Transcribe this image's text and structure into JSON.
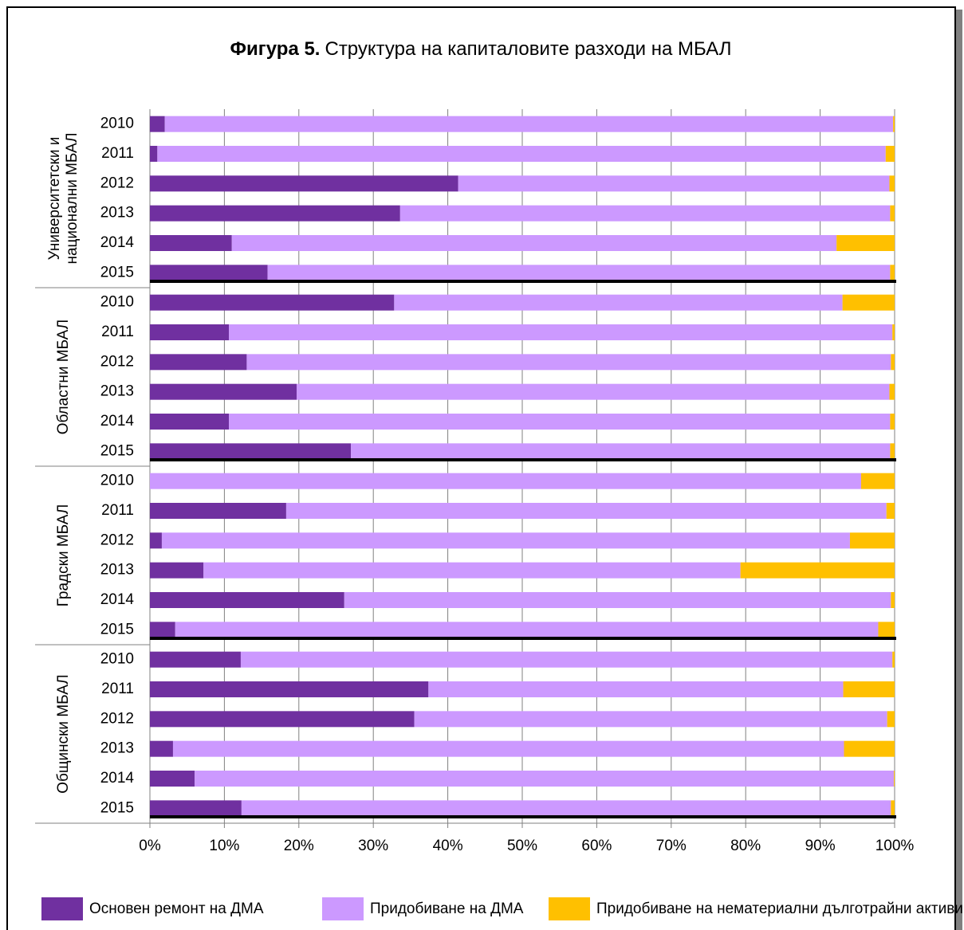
{
  "chart_data": {
    "type": "stacked_barh",
    "title_prefix": "Фигура 5.",
    "title": "Структура на капиталовите разходи на МБАЛ",
    "groups": [
      "Университетски и\nнационални МБАЛ",
      "Областни МБАЛ",
      "Градски МБАЛ",
      "Общински МБАЛ"
    ],
    "categories": [
      "2010",
      "2011",
      "2012",
      "2013",
      "2014",
      "2015",
      "2010",
      "2011",
      "2012",
      "2013",
      "2014",
      "2015",
      "2010",
      "2011",
      "2012",
      "2013",
      "2014",
      "2015",
      "2010",
      "2011",
      "2012",
      "2013",
      "2014",
      "2015"
    ],
    "series": [
      {
        "name": "Основен ремонт на ДМА",
        "color": "#7030a0",
        "values": [
          2,
          1,
          41.4,
          33.6,
          11,
          15.8,
          32.8,
          10.6,
          13,
          19.7,
          10.6,
          27,
          0,
          18.3,
          1.6,
          7.2,
          26.1,
          3.4,
          12.2,
          37.4,
          35.5,
          3.1,
          6,
          12.3
        ]
      },
      {
        "name": "Придобиване на ДМА",
        "color": "#cc99ff",
        "values": [
          97.8,
          97.8,
          57.9,
          65.8,
          81.2,
          83.6,
          60.2,
          89.1,
          86.5,
          79.6,
          88.8,
          72.4,
          95.5,
          80.6,
          92.4,
          72.1,
          73.4,
          94.4,
          87.5,
          55.7,
          63.5,
          90.1,
          93.9,
          87.2
        ]
      },
      {
        "name": "Придобиване на нематериални дълготрайни активи",
        "color": "#ffc000",
        "values": [
          0.2,
          1.2,
          0.7,
          0.6,
          7.8,
          0.6,
          7,
          0.3,
          0.5,
          0.7,
          0.6,
          0.6,
          4.5,
          1.1,
          6,
          20.7,
          0.5,
          2.2,
          0.3,
          6.9,
          1,
          6.8,
          0.1,
          0.5
        ]
      }
    ],
    "xlim": [
      0,
      100
    ],
    "xticks": [
      {
        "value": 0,
        "label": "0%"
      },
      {
        "value": 10,
        "label": "10%"
      },
      {
        "value": 20,
        "label": "20%"
      },
      {
        "value": 30,
        "label": "30%"
      },
      {
        "value": 40,
        "label": "40%"
      },
      {
        "value": 50,
        "label": "50%"
      },
      {
        "value": 60,
        "label": "60%"
      },
      {
        "value": 70,
        "label": "70%"
      },
      {
        "value": 80,
        "label": "80%"
      },
      {
        "value": 90,
        "label": "90%"
      },
      {
        "value": 100,
        "label": "100%"
      }
    ],
    "grid": true,
    "legend": "bottom"
  }
}
